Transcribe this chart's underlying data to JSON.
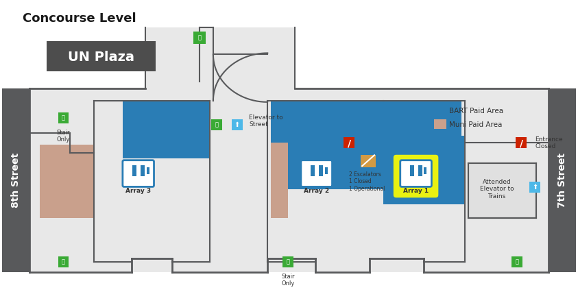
{
  "title": "Concourse Level",
  "bg_color": "#ffffff",
  "outer_wall_color": "#58595b",
  "floor_color": "#f0f0f0",
  "bart_paid_color": "#2a7db5",
  "muni_paid_color": "#c9a08c",
  "wall_line_color": "#58595b",
  "street_label_8": "8th Street",
  "street_label_7": "7th Street",
  "un_plaza_label": "UN Plaza",
  "un_plaza_bg": "#4d4d4d",
  "array1_label": "Array 1",
  "array2_label": "Array 2",
  "array3_label": "Array 3",
  "highlight_color": "#ffff00",
  "gate_color": "#2a7db5",
  "legend_bart": "BART Paid Area",
  "legend_muni": "Muni Paid Area",
  "elevator_label1": "Elevator to\nStreet",
  "elevator_label2": "Attended\nElevator to\nTrains",
  "stair_only": "Stair\nOnly",
  "entrance_closed": "Entrance\nClosed",
  "escalator_text": "2 Escalators\n1 Closed\n1 Operational",
  "green_color": "#3aaa35",
  "red_color": "#cc2200",
  "light_blue_color": "#4db8e8"
}
